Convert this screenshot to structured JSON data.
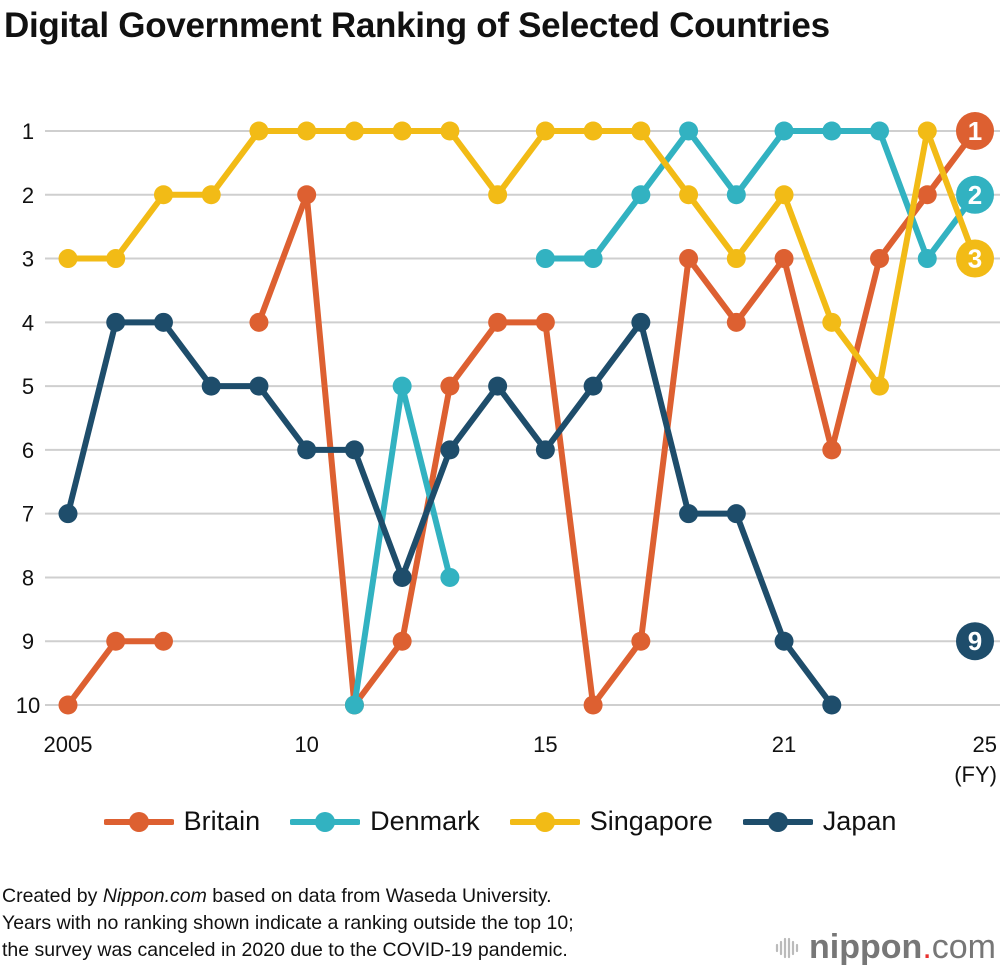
{
  "chart_data": {
    "type": "line",
    "title": "Digital Government Ranking of Selected Countries",
    "categories": [
      "2005",
      "2006",
      "2007",
      "2008",
      "2009",
      "2010",
      "2011",
      "2012",
      "2013",
      "2014",
      "2015",
      "2016",
      "2017",
      "2018",
      "2019",
      "2021",
      "2022",
      "2023",
      "2024",
      "2025"
    ],
    "x_tick_labels": [
      {
        "index": 0,
        "label": "2005"
      },
      {
        "index": 5,
        "label": "10"
      },
      {
        "index": 10,
        "label": "15"
      },
      {
        "index": 15,
        "label": "21"
      },
      {
        "index": 19,
        "label": "25"
      }
    ],
    "x_unit": "(FY)",
    "y_ticks": [
      1,
      2,
      3,
      4,
      5,
      6,
      7,
      8,
      9,
      10
    ],
    "ylim": [
      1,
      10
    ],
    "y_inverted": true,
    "grid": true,
    "legend_position": "bottom",
    "series": [
      {
        "name": "Britain",
        "color": "#dd6031",
        "values": [
          10,
          9,
          9,
          null,
          4,
          2,
          10,
          9,
          5,
          4,
          4,
          10,
          9,
          3,
          4,
          3,
          6,
          3,
          2,
          1
        ]
      },
      {
        "name": "Denmark",
        "color": "#32b2c1",
        "values": [
          null,
          null,
          null,
          null,
          null,
          null,
          10,
          5,
          8,
          null,
          3,
          3,
          2,
          1,
          2,
          1,
          1,
          1,
          3,
          2
        ]
      },
      {
        "name": "Singapore",
        "color": "#f2bb16",
        "values": [
          3,
          3,
          2,
          2,
          1,
          1,
          1,
          1,
          1,
          2,
          1,
          1,
          1,
          2,
          3,
          2,
          4,
          5,
          1,
          3
        ]
      },
      {
        "name": "Japan",
        "color": "#1e4d6b",
        "values": [
          7,
          4,
          4,
          5,
          5,
          6,
          6,
          8,
          6,
          5,
          6,
          5,
          4,
          7,
          7,
          9,
          10,
          null,
          null,
          9
        ]
      }
    ],
    "final_labels": [
      {
        "series": "Britain",
        "label": "1"
      },
      {
        "series": "Denmark",
        "label": "2"
      },
      {
        "series": "Singapore",
        "label": "3"
      },
      {
        "series": "Japan",
        "label": "9"
      }
    ]
  },
  "footer": {
    "line1_prefix": "Created by ",
    "line1_brand": "Nippon.com",
    "line1_suffix": " based on data from Waseda University.",
    "line2": "Years with no ranking shown indicate a ranking outside the top 10;",
    "line3": "the survey was canceled in 2020 due to the COVID-19 pandemic."
  },
  "logo": {
    "name": "nippon",
    "dot": ".",
    "tld": "com"
  }
}
